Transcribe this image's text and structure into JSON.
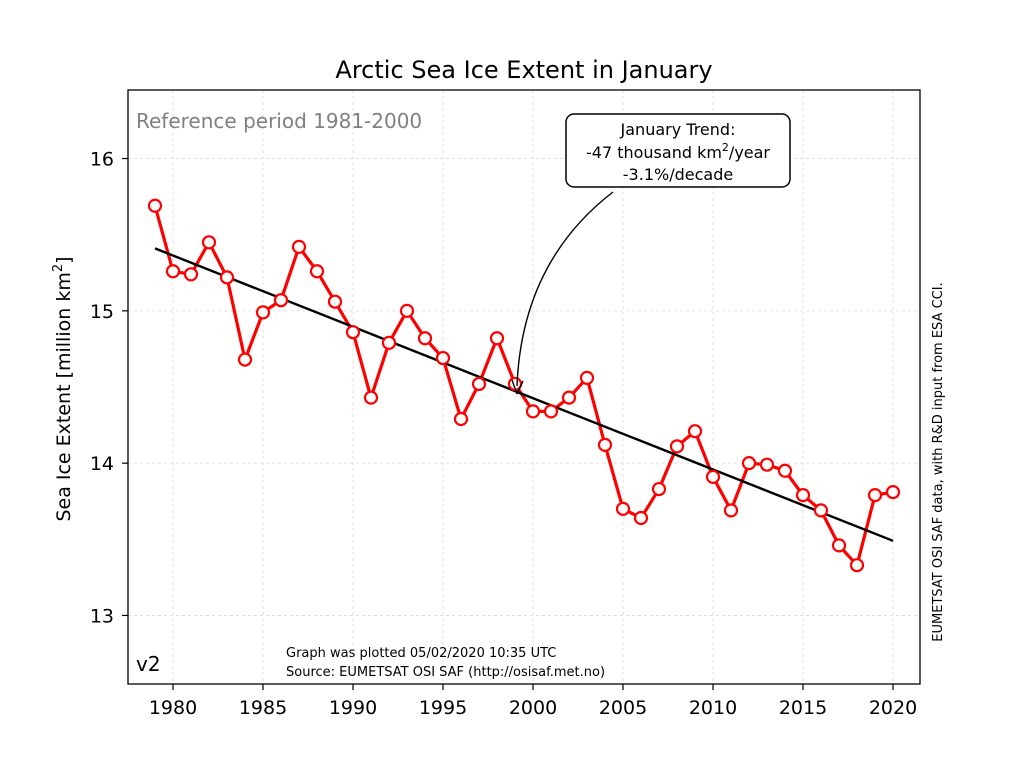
{
  "chart_data": {
    "type": "line",
    "title": "Arctic Sea Ice Extent in January",
    "ylabel": "Sea Ice Extent [million km²]",
    "ylabel_main": "Sea Ice Extent [million km",
    "ylabel_sup": "2",
    "ylabel_tail": "]",
    "xlim": [
      1977.5,
      2021.5
    ],
    "ylim": [
      12.55,
      16.45
    ],
    "grid": true,
    "x_ticks": [
      1980,
      1985,
      1990,
      1995,
      2000,
      2005,
      2010,
      2015,
      2020
    ],
    "y_ticks": [
      13,
      14,
      15,
      16
    ],
    "x": [
      1979,
      1980,
      1981,
      1982,
      1983,
      1984,
      1985,
      1986,
      1987,
      1988,
      1989,
      1990,
      1991,
      1992,
      1993,
      1994,
      1995,
      1996,
      1997,
      1998,
      1999,
      2000,
      2001,
      2002,
      2003,
      2004,
      2005,
      2006,
      2007,
      2008,
      2009,
      2010,
      2011,
      2012,
      2013,
      2014,
      2015,
      2016,
      2017,
      2018,
      2019,
      2020
    ],
    "series": [
      {
        "color": "#ff0000",
        "values": [
          15.69,
          15.26,
          15.24,
          15.45,
          15.22,
          14.68,
          14.99,
          15.07,
          15.42,
          15.26,
          15.06,
          14.86,
          14.43,
          14.79,
          15.0,
          14.82,
          14.69,
          14.29,
          14.52,
          14.82,
          14.52,
          14.34,
          14.34,
          14.43,
          14.56,
          14.12,
          13.7,
          13.64,
          13.83,
          14.11,
          14.21,
          13.91,
          13.69,
          14.0,
          13.99,
          13.95,
          13.79,
          13.69,
          13.46,
          13.33,
          13.79,
          13.81
        ]
      }
    ],
    "trend": {
      "color": "#000000",
      "x": [
        1979,
        2020
      ],
      "y": [
        15.41,
        13.49
      ]
    },
    "annotations": {
      "reference": "Reference period 1981-2000",
      "trend_box": {
        "line1": "January Trend:",
        "line2_main": "-47 thousand km",
        "line2_sup": "2",
        "line2_tail": "/year",
        "line3": "-3.1%/decade",
        "arrow_target": [
          1999.5,
          14.45
        ]
      },
      "version": "v2",
      "plotted": "Graph was plotted 05/02/2020 10:35 UTC",
      "source": "Source: EUMETSAT OSI SAF (http://osisaf.met.no)",
      "credit": "EUMETSAT OSI SAF data, with R&D input from ESA CCI."
    }
  }
}
